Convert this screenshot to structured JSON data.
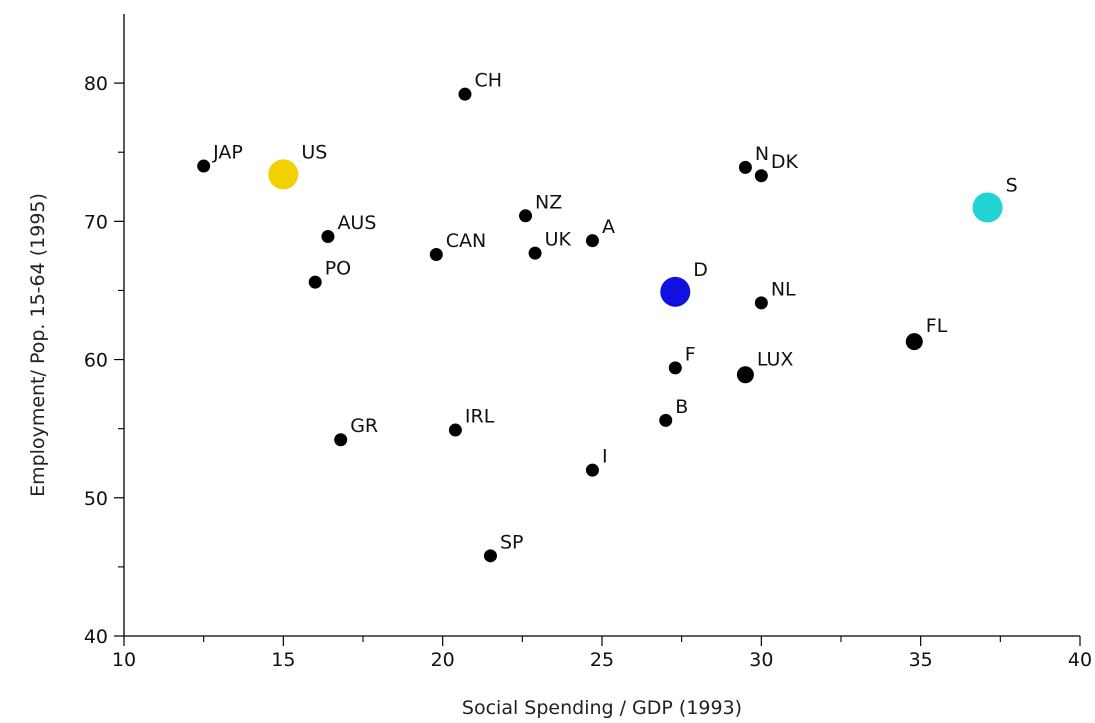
{
  "chart_data": {
    "type": "scatter",
    "title": "",
    "xlabel": "Social Spending / GDP (1993)",
    "ylabel": "Employment/ Pop. 15-64 (1995)",
    "xlim": [
      10,
      40
    ],
    "ylim": [
      40,
      85
    ],
    "x_ticks": [
      10,
      15,
      20,
      25,
      30,
      35,
      40
    ],
    "y_ticks": [
      40,
      50,
      60,
      70,
      80
    ],
    "grid": false,
    "legend": "none",
    "points": [
      {
        "label": "CH",
        "x": 20.7,
        "y": 79.2,
        "color": "#000000",
        "size": "small"
      },
      {
        "label": "JAP",
        "x": 12.5,
        "y": 74.0,
        "color": "#000000",
        "size": "small"
      },
      {
        "label": "US",
        "x": 15.0,
        "y": 73.4,
        "color": "#f5d000",
        "size": "large"
      },
      {
        "label": "N",
        "x": 29.5,
        "y": 73.9,
        "color": "#000000",
        "size": "small"
      },
      {
        "label": "DK",
        "x": 30.0,
        "y": 73.3,
        "color": "#000000",
        "size": "small"
      },
      {
        "label": "S",
        "x": 37.1,
        "y": 71.0,
        "color": "#22d3d3",
        "size": "large"
      },
      {
        "label": "NZ",
        "x": 22.6,
        "y": 70.4,
        "color": "#000000",
        "size": "small"
      },
      {
        "label": "AUS",
        "x": 16.4,
        "y": 68.9,
        "color": "#000000",
        "size": "small"
      },
      {
        "label": "A",
        "x": 24.7,
        "y": 68.6,
        "color": "#000000",
        "size": "small"
      },
      {
        "label": "CAN",
        "x": 19.8,
        "y": 67.6,
        "color": "#000000",
        "size": "small"
      },
      {
        "label": "UK",
        "x": 22.9,
        "y": 67.7,
        "color": "#000000",
        "size": "small"
      },
      {
        "label": "PO",
        "x": 16.0,
        "y": 65.6,
        "color": "#000000",
        "size": "small"
      },
      {
        "label": "D",
        "x": 27.3,
        "y": 64.9,
        "color": "#1010e0",
        "size": "large"
      },
      {
        "label": "NL",
        "x": 30.0,
        "y": 64.1,
        "color": "#000000",
        "size": "small"
      },
      {
        "label": "FL",
        "x": 34.8,
        "y": 61.3,
        "color": "#000000",
        "size": "medium"
      },
      {
        "label": "F",
        "x": 27.3,
        "y": 59.4,
        "color": "#000000",
        "size": "small"
      },
      {
        "label": "LUX",
        "x": 29.5,
        "y": 58.9,
        "color": "#000000",
        "size": "medium"
      },
      {
        "label": "B",
        "x": 27.0,
        "y": 55.6,
        "color": "#000000",
        "size": "small"
      },
      {
        "label": "IRL",
        "x": 20.4,
        "y": 54.9,
        "color": "#000000",
        "size": "small"
      },
      {
        "label": "GR",
        "x": 16.8,
        "y": 54.2,
        "color": "#000000",
        "size": "small"
      },
      {
        "label": "I",
        "x": 24.7,
        "y": 52.0,
        "color": "#000000",
        "size": "small"
      },
      {
        "label": "SP",
        "x": 21.5,
        "y": 45.8,
        "color": "#000000",
        "size": "small"
      }
    ]
  }
}
